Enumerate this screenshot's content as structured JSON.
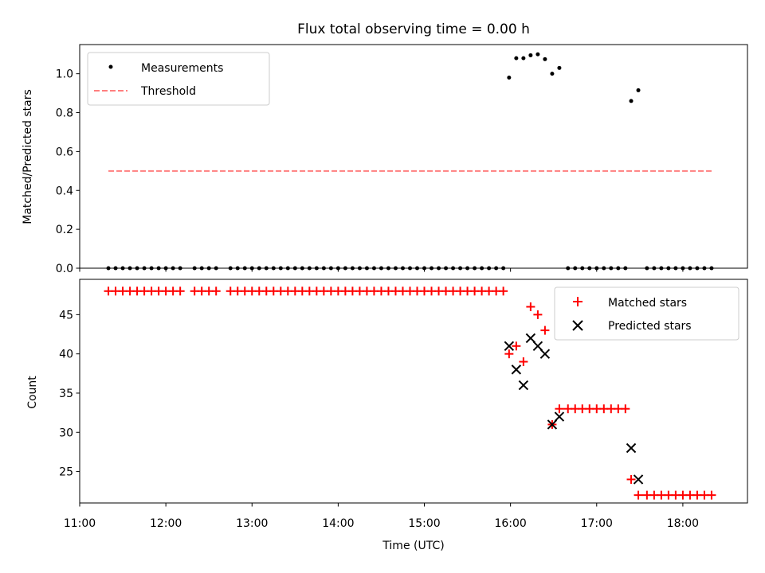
{
  "figure": {
    "title": "Flux total observing time = 0.00 h",
    "xlabel": "Time (UTC)"
  },
  "colors": {
    "measurements": "#000000",
    "threshold": "#ff7f7f",
    "matched": "#ff0000",
    "predicted": "#000000"
  },
  "chart_data": [
    {
      "type": "scatter",
      "title": "Flux total observing time = 0.00 h",
      "xlabel": "",
      "ylabel": "Matched/Predicted stars",
      "xlim": [
        "11:00",
        "18:45"
      ],
      "ylim": [
        0,
        1.15
      ],
      "yticks": [
        0.0,
        0.2,
        0.4,
        0.6,
        0.8,
        1.0
      ],
      "ytick_labels": [
        "0.0",
        "0.2",
        "0.4",
        "0.6",
        "0.8",
        "1.0"
      ],
      "grid": false,
      "legend": "upper left",
      "legend_entries": [
        "Measurements",
        "Threshold"
      ],
      "threshold": {
        "name": "Threshold",
        "y": 0.5,
        "x_start": "11:20",
        "x_end": "18:20",
        "style": "dashed"
      },
      "series": [
        {
          "name": "Measurements",
          "marker": "dot",
          "points": [
            [
              "11:20",
              0
            ],
            [
              "11:25",
              0
            ],
            [
              "11:30",
              0
            ],
            [
              "11:35",
              0
            ],
            [
              "11:40",
              0
            ],
            [
              "11:45",
              0
            ],
            [
              "11:50",
              0
            ],
            [
              "11:55",
              0
            ],
            [
              "12:00",
              0
            ],
            [
              "12:05",
              0
            ],
            [
              "12:10",
              0
            ],
            [
              "12:20",
              0
            ],
            [
              "12:25",
              0
            ],
            [
              "12:30",
              0
            ],
            [
              "12:35",
              0
            ],
            [
              "12:45",
              0
            ],
            [
              "12:50",
              0
            ],
            [
              "12:55",
              0
            ],
            [
              "13:00",
              0
            ],
            [
              "13:05",
              0
            ],
            [
              "13:10",
              0
            ],
            [
              "13:15",
              0
            ],
            [
              "13:20",
              0
            ],
            [
              "13:25",
              0
            ],
            [
              "13:30",
              0
            ],
            [
              "13:35",
              0
            ],
            [
              "13:40",
              0
            ],
            [
              "13:45",
              0
            ],
            [
              "13:50",
              0
            ],
            [
              "13:55",
              0
            ],
            [
              "14:00",
              0
            ],
            [
              "14:05",
              0
            ],
            [
              "14:10",
              0
            ],
            [
              "14:15",
              0
            ],
            [
              "14:20",
              0
            ],
            [
              "14:25",
              0
            ],
            [
              "14:30",
              0
            ],
            [
              "14:35",
              0
            ],
            [
              "14:40",
              0
            ],
            [
              "14:45",
              0
            ],
            [
              "14:50",
              0
            ],
            [
              "14:55",
              0
            ],
            [
              "15:00",
              0
            ],
            [
              "15:05",
              0
            ],
            [
              "15:10",
              0
            ],
            [
              "15:15",
              0
            ],
            [
              "15:20",
              0
            ],
            [
              "15:25",
              0
            ],
            [
              "15:30",
              0
            ],
            [
              "15:35",
              0
            ],
            [
              "15:40",
              0
            ],
            [
              "15:45",
              0
            ],
            [
              "15:50",
              0
            ],
            [
              "15:55",
              0
            ],
            [
              "15:59",
              0.98
            ],
            [
              "16:04",
              1.08
            ],
            [
              "16:09",
              1.08
            ],
            [
              "16:14",
              1.095
            ],
            [
              "16:19",
              1.1
            ],
            [
              "16:24",
              1.075
            ],
            [
              "16:29",
              1.0
            ],
            [
              "16:34",
              1.03
            ],
            [
              "16:40",
              0
            ],
            [
              "16:45",
              0
            ],
            [
              "16:50",
              0
            ],
            [
              "16:55",
              0
            ],
            [
              "17:00",
              0
            ],
            [
              "17:05",
              0
            ],
            [
              "17:10",
              0
            ],
            [
              "17:15",
              0
            ],
            [
              "17:20",
              0
            ],
            [
              "17:24",
              0.86
            ],
            [
              "17:29",
              0.915
            ],
            [
              "17:35",
              0
            ],
            [
              "17:40",
              0
            ],
            [
              "17:45",
              0
            ],
            [
              "17:50",
              0
            ],
            [
              "17:55",
              0
            ],
            [
              "18:00",
              0
            ],
            [
              "18:05",
              0
            ],
            [
              "18:10",
              0
            ],
            [
              "18:15",
              0
            ],
            [
              "18:20",
              0
            ]
          ]
        }
      ]
    },
    {
      "type": "scatter",
      "title": "",
      "xlabel": "Time (UTC)",
      "ylabel": "Count",
      "xlim": [
        "11:00",
        "18:45"
      ],
      "xtick_labels": [
        "11:00",
        "12:00",
        "13:00",
        "14:00",
        "15:00",
        "16:00",
        "17:00",
        "18:00"
      ],
      "ylim": [
        21,
        49.5
      ],
      "yticks": [
        25,
        30,
        35,
        40,
        45
      ],
      "ytick_labels": [
        "25",
        "30",
        "35",
        "40",
        "45"
      ],
      "grid": false,
      "legend": "upper right",
      "legend_entries": [
        "Matched stars",
        "Predicted stars"
      ],
      "series": [
        {
          "name": "Matched stars",
          "marker": "plus",
          "points": [
            [
              "11:20",
              48
            ],
            [
              "11:25",
              48
            ],
            [
              "11:30",
              48
            ],
            [
              "11:35",
              48
            ],
            [
              "11:40",
              48
            ],
            [
              "11:45",
              48
            ],
            [
              "11:50",
              48
            ],
            [
              "11:55",
              48
            ],
            [
              "12:00",
              48
            ],
            [
              "12:05",
              48
            ],
            [
              "12:10",
              48
            ],
            [
              "12:20",
              48
            ],
            [
              "12:25",
              48
            ],
            [
              "12:30",
              48
            ],
            [
              "12:35",
              48
            ],
            [
              "12:45",
              48
            ],
            [
              "12:50",
              48
            ],
            [
              "12:55",
              48
            ],
            [
              "13:00",
              48
            ],
            [
              "13:05",
              48
            ],
            [
              "13:10",
              48
            ],
            [
              "13:15",
              48
            ],
            [
              "13:20",
              48
            ],
            [
              "13:25",
              48
            ],
            [
              "13:30",
              48
            ],
            [
              "13:35",
              48
            ],
            [
              "13:40",
              48
            ],
            [
              "13:45",
              48
            ],
            [
              "13:50",
              48
            ],
            [
              "13:55",
              48
            ],
            [
              "14:00",
              48
            ],
            [
              "14:05",
              48
            ],
            [
              "14:10",
              48
            ],
            [
              "14:15",
              48
            ],
            [
              "14:20",
              48
            ],
            [
              "14:25",
              48
            ],
            [
              "14:30",
              48
            ],
            [
              "14:35",
              48
            ],
            [
              "14:40",
              48
            ],
            [
              "14:45",
              48
            ],
            [
              "14:50",
              48
            ],
            [
              "14:55",
              48
            ],
            [
              "15:00",
              48
            ],
            [
              "15:05",
              48
            ],
            [
              "15:10",
              48
            ],
            [
              "15:15",
              48
            ],
            [
              "15:20",
              48
            ],
            [
              "15:25",
              48
            ],
            [
              "15:30",
              48
            ],
            [
              "15:35",
              48
            ],
            [
              "15:40",
              48
            ],
            [
              "15:45",
              48
            ],
            [
              "15:50",
              48
            ],
            [
              "15:55",
              48
            ],
            [
              "15:59",
              40
            ],
            [
              "16:04",
              41
            ],
            [
              "16:09",
              39
            ],
            [
              "16:14",
              46
            ],
            [
              "16:19",
              45
            ],
            [
              "16:24",
              43
            ],
            [
              "16:29",
              31
            ],
            [
              "16:34",
              33
            ],
            [
              "16:40",
              33
            ],
            [
              "16:45",
              33
            ],
            [
              "16:50",
              33
            ],
            [
              "16:55",
              33
            ],
            [
              "17:00",
              33
            ],
            [
              "17:05",
              33
            ],
            [
              "17:10",
              33
            ],
            [
              "17:15",
              33
            ],
            [
              "17:20",
              33
            ],
            [
              "17:24",
              24
            ],
            [
              "17:29",
              22
            ],
            [
              "17:35",
              22
            ],
            [
              "17:40",
              22
            ],
            [
              "17:45",
              22
            ],
            [
              "17:50",
              22
            ],
            [
              "17:55",
              22
            ],
            [
              "18:00",
              22
            ],
            [
              "18:05",
              22
            ],
            [
              "18:10",
              22
            ],
            [
              "18:15",
              22
            ],
            [
              "18:20",
              22
            ]
          ]
        },
        {
          "name": "Predicted stars",
          "marker": "x",
          "points": [
            [
              "15:59",
              41
            ],
            [
              "16:04",
              38
            ],
            [
              "16:09",
              36
            ],
            [
              "16:14",
              42
            ],
            [
              "16:19",
              41
            ],
            [
              "16:24",
              40
            ],
            [
              "16:29",
              31
            ],
            [
              "16:34",
              32
            ],
            [
              "17:24",
              28
            ],
            [
              "17:29",
              24
            ]
          ]
        }
      ]
    }
  ]
}
